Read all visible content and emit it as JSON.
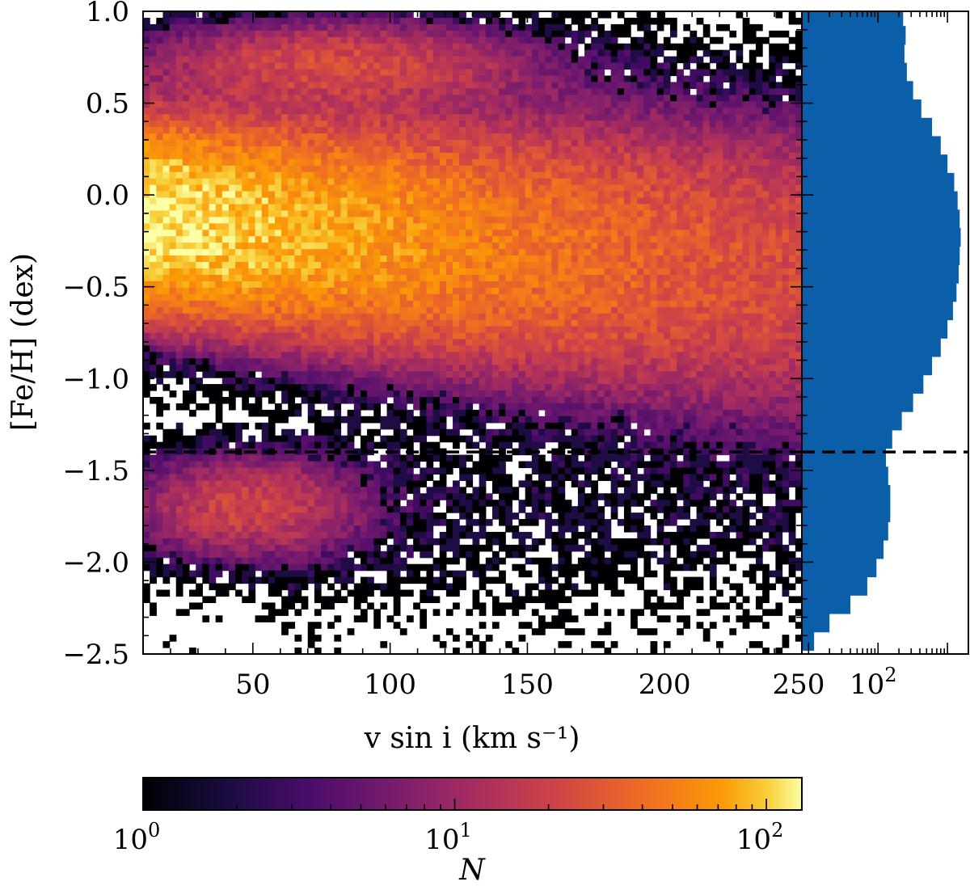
{
  "chart_data": [
    {
      "type": "heatmap",
      "title": "",
      "xlabel": "v sin i (km s⁻¹)",
      "ylabel": "[Fe/H] (dex)",
      "xlim": [
        10,
        250
      ],
      "ylim": [
        -2.5,
        1.0
      ],
      "x_ticks": [
        {
          "value": 50,
          "label": "50"
        },
        {
          "value": 100,
          "label": "100"
        },
        {
          "value": 150,
          "label": "150"
        },
        {
          "value": 200,
          "label": "200"
        },
        {
          "value": 250,
          "label": "250"
        }
      ],
      "y_ticks": [
        {
          "value": 1.0,
          "label": "1.0"
        },
        {
          "value": 0.5,
          "label": "0.5"
        },
        {
          "value": 0.0,
          "label": "0.0"
        },
        {
          "value": -0.5,
          "label": "−0.5"
        },
        {
          "value": -1.0,
          "label": "−1.0"
        },
        {
          "value": -1.5,
          "label": "−1.5"
        },
        {
          "value": -2.0,
          "label": "−2.0"
        },
        {
          "value": -2.5,
          "label": "−2.5"
        }
      ],
      "bins": {
        "x": 100,
        "y": 100
      },
      "density_model": "two populations: main metallicity band centred near [Fe/H] ≈ -0.1 (peak count ≈ 130 at v sin i ≈ 10-30, decreasing toward higher v sin i) and a metal-poor clump near [Fe/H] ≈ -1.7 at v sin i ≈ 30-80; sparse counts elsewhere",
      "reference_line": {
        "y": -1.4,
        "style": "dashed",
        "color": "#000000"
      },
      "colormap": "inferno",
      "color_scale": "log"
    },
    {
      "type": "bar",
      "orientation": "horizontal",
      "title": "",
      "xlabel": "",
      "ylabel": "",
      "x_scale": "log",
      "xlim": [
        8,
        2000
      ],
      "ylim": [
        -2.5,
        1.0
      ],
      "x_ticks": [
        {
          "value": 100,
          "label": "10",
          "sup": "2"
        }
      ],
      "bin_centers": [
        -2.43,
        -2.33,
        -2.23,
        -2.13,
        -2.03,
        -1.93,
        -1.83,
        -1.73,
        -1.63,
        -1.53,
        -1.43,
        -1.33,
        -1.23,
        -1.13,
        -1.03,
        -0.93,
        -0.83,
        -0.73,
        -0.63,
        -0.53,
        -0.43,
        -0.33,
        -0.23,
        -0.13,
        -0.03,
        0.07,
        0.17,
        0.27,
        0.37,
        0.47,
        0.57,
        0.67,
        0.77,
        0.87,
        0.97
      ],
      "counts": [
        12,
        20,
        40,
        70,
        95,
        120,
        140,
        150,
        150,
        140,
        130,
        160,
        220,
        320,
        450,
        600,
        800,
        1000,
        1200,
        1350,
        1450,
        1500,
        1550,
        1500,
        1400,
        1250,
        1000,
        800,
        600,
        420,
        320,
        260,
        240,
        250,
        230
      ],
      "color": "#0b5ea8",
      "reference_line": {
        "y": -1.4,
        "style": "dashed",
        "color": "#000000"
      }
    }
  ],
  "colorbar": {
    "label": "N",
    "scale": "log",
    "range": [
      1,
      130
    ],
    "colormap": "inferno",
    "ticks": [
      {
        "value": 1,
        "label": "10",
        "sup": "0"
      },
      {
        "value": 10,
        "label": "10",
        "sup": "1"
      },
      {
        "value": 100,
        "label": "10",
        "sup": "2"
      }
    ]
  }
}
